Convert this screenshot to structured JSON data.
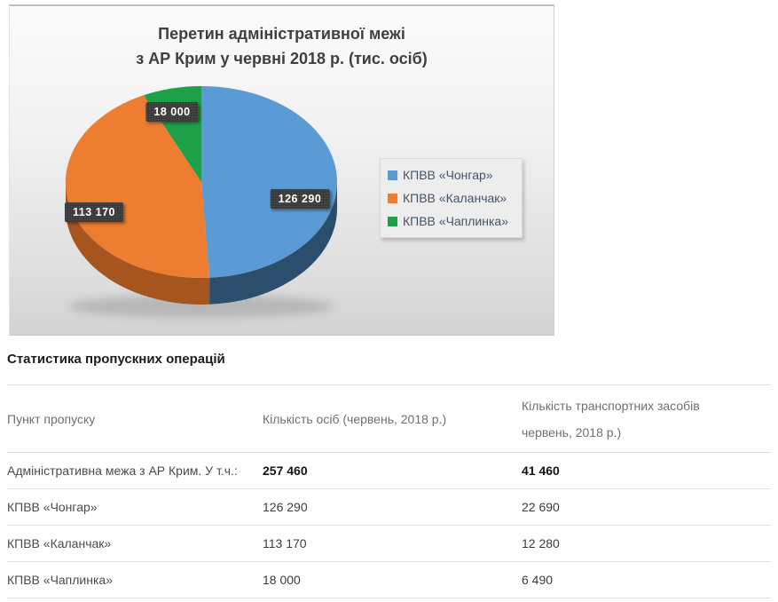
{
  "chart_data": {
    "type": "pie",
    "style": "3d",
    "title": "Перетин адміністративної межі з АР Крим у червні 2018 р. (тис. осіб)",
    "title_lines": [
      "Перетин адміністративної межі",
      "з АР Крим у червні 2018 р. (тис. осіб)"
    ],
    "categories": [
      "КПВВ «Чонгар»",
      "КПВВ «Каланчак»",
      "КПВВ «Чаплинка»"
    ],
    "values": [
      126290,
      113170,
      18000
    ],
    "data_labels": [
      "126 290",
      "113 170",
      "18 000"
    ],
    "colors": [
      "#5B9BD5",
      "#ED7D31",
      "#1EA049"
    ],
    "side_colors": [
      "#2A4E6C",
      "#A5551D",
      "#136B31"
    ],
    "legend_position": "right",
    "start_angle_deg": 0,
    "direction": "clockwise",
    "total": 257460
  },
  "section": {
    "heading": "Статистика пропускних операцій"
  },
  "table": {
    "columns": [
      "Пункт пропуску",
      "Кількість осіб (червень, 2018 р.)",
      "Кількість транспортних засобів червень, 2018 р.)"
    ],
    "rows": [
      {
        "label": "Адміністративна межа з АР Крим. У т.ч.:",
        "persons": "257 460",
        "vehicles": "41 460",
        "bold": true
      },
      {
        "label": "КПВВ «Чонгар»",
        "persons": "126 290",
        "vehicles": "22 690",
        "bold": false
      },
      {
        "label": "КПВВ «Каланчак»",
        "persons": "113 170",
        "vehicles": "12 280",
        "bold": false
      },
      {
        "label": "КПВВ «Чаплинка»",
        "persons": "18 000",
        "vehicles": "6 490",
        "bold": false
      }
    ]
  }
}
